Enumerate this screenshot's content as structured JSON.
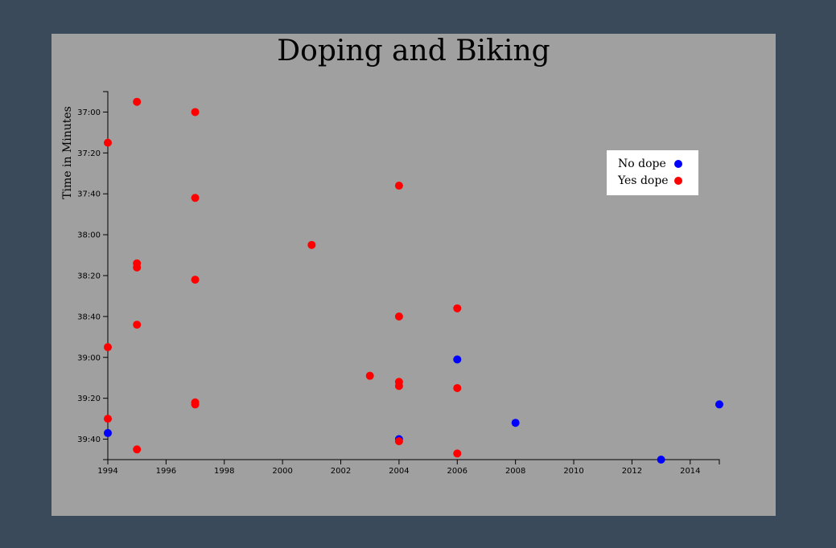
{
  "chart_data": {
    "type": "scatter",
    "title": "Doping and Biking",
    "xlabel": "",
    "ylabel": "Time in Minutes",
    "xlim": [
      1994,
      2015
    ],
    "ylim": [
      "36:50",
      "39:50"
    ],
    "y_inverted": true,
    "x_ticks": [
      "1994",
      "1996",
      "1998",
      "2000",
      "2002",
      "2004",
      "2006",
      "2008",
      "2010",
      "2012",
      "2014"
    ],
    "y_ticks": [
      "37:00",
      "37:20",
      "37:40",
      "38:00",
      "38:20",
      "38:40",
      "39:00",
      "39:20",
      "39:40"
    ],
    "legend_position": "top-right",
    "grid": false,
    "series": [
      {
        "name": "No dope",
        "color": "#0000ff",
        "points": [
          {
            "x": 1994,
            "y": "39:37"
          },
          {
            "x": 2004,
            "y": "39:40"
          },
          {
            "x": 2006,
            "y": "39:01"
          },
          {
            "x": 2008,
            "y": "39:32"
          },
          {
            "x": 2013,
            "y": "39:50"
          },
          {
            "x": 2015,
            "y": "39:23"
          }
        ]
      },
      {
        "name": "Yes dope",
        "color": "#ff0000",
        "points": [
          {
            "x": 1995,
            "y": "36:55"
          },
          {
            "x": 1997,
            "y": "37:00"
          },
          {
            "x": 1994,
            "y": "37:15"
          },
          {
            "x": 1997,
            "y": "37:42"
          },
          {
            "x": 2004,
            "y": "37:36"
          },
          {
            "x": 2001,
            "y": "38:05"
          },
          {
            "x": 1995,
            "y": "38:14"
          },
          {
            "x": 1995,
            "y": "38:16"
          },
          {
            "x": 1997,
            "y": "38:22"
          },
          {
            "x": 2006,
            "y": "38:36"
          },
          {
            "x": 2004,
            "y": "38:40"
          },
          {
            "x": 1995,
            "y": "38:44"
          },
          {
            "x": 1994,
            "y": "38:55"
          },
          {
            "x": 2003,
            "y": "39:09"
          },
          {
            "x": 2004,
            "y": "39:12"
          },
          {
            "x": 2004,
            "y": "39:14"
          },
          {
            "x": 2006,
            "y": "39:15"
          },
          {
            "x": 1997,
            "y": "39:22"
          },
          {
            "x": 1997,
            "y": "39:23"
          },
          {
            "x": 1994,
            "y": "39:30"
          },
          {
            "x": 2004,
            "y": "39:41"
          },
          {
            "x": 1995,
            "y": "39:45"
          },
          {
            "x": 2006,
            "y": "39:47"
          }
        ]
      }
    ]
  }
}
